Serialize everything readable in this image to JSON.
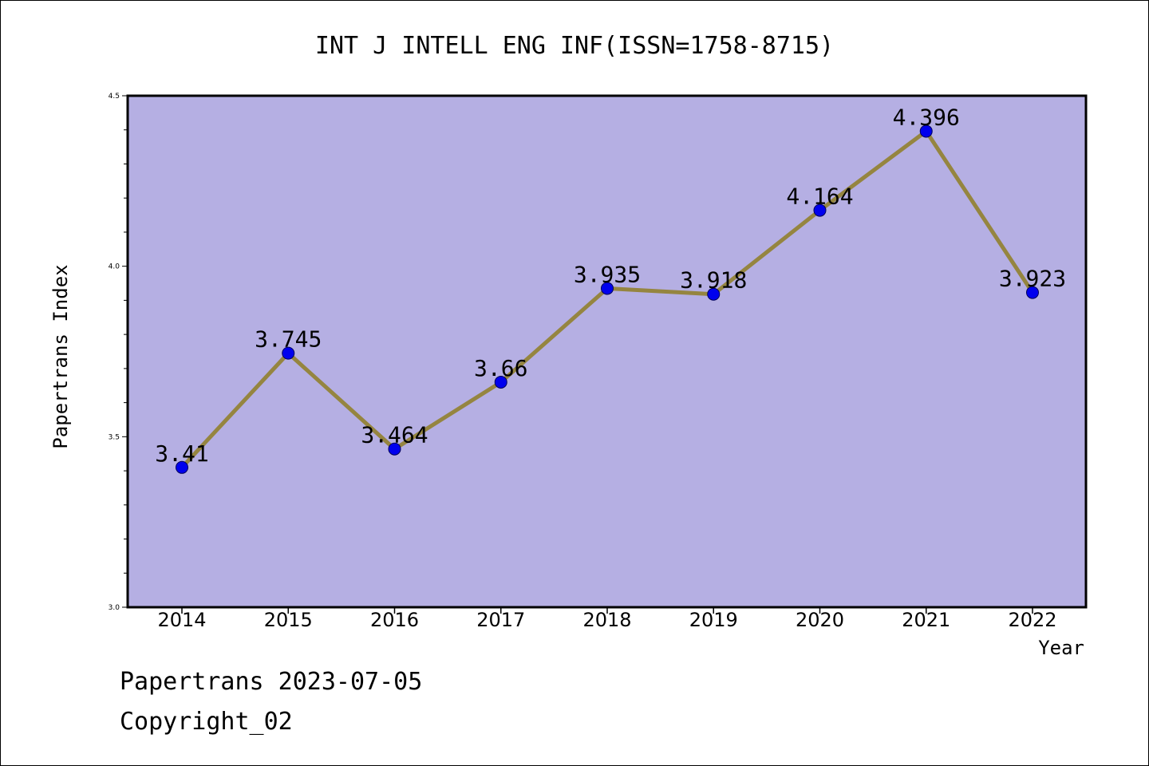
{
  "chart_data": {
    "type": "line",
    "title": "INT J INTELL ENG INF(ISSN=1758-8715)",
    "xlabel": "Year",
    "ylabel": "Papertrans Index",
    "x": [
      "2014",
      "2015",
      "2016",
      "2017",
      "2018",
      "2019",
      "2020",
      "2021",
      "2022"
    ],
    "series": [
      {
        "values": [
          3.41,
          3.745,
          3.464,
          3.66,
          3.935,
          3.918,
          4.164,
          4.396,
          3.923
        ],
        "labels": [
          "3.41",
          "3.745",
          "3.464",
          "3.66",
          "3.935",
          "3.918",
          "4.164",
          "4.396",
          "3.923"
        ]
      }
    ],
    "ylim": [
      3.0,
      4.5
    ],
    "yticks": [
      "3.0",
      "3.5",
      "4.0",
      "4.5"
    ],
    "grid": false,
    "colors": {
      "plot_background": "#b5afe3",
      "line": "#958540",
      "marker": "#0000ee"
    }
  },
  "footer": {
    "line1": "Papertrans 2023-07-05",
    "line2": "Copyright_02"
  }
}
